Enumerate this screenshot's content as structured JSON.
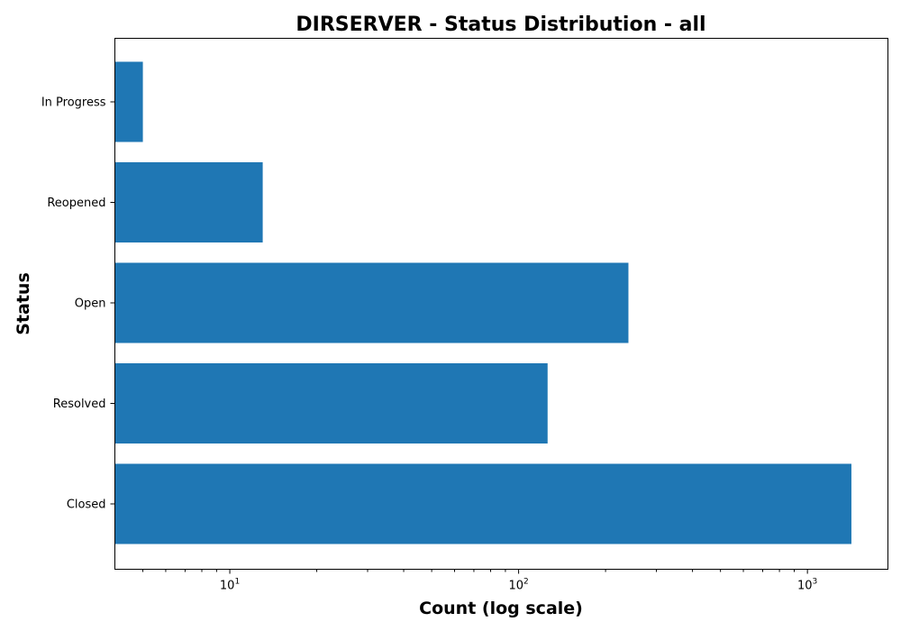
{
  "chart_data": {
    "type": "bar",
    "orientation": "horizontal",
    "title": "DIRSERVER - Status Distribution - all",
    "xlabel": "Count (log scale)",
    "ylabel": "Status",
    "x_scale": "log",
    "xlim": [
      4,
      1900
    ],
    "categories": [
      "Closed",
      "Resolved",
      "Open",
      "Reopened",
      "In Progress"
    ],
    "values": [
      1420,
      126,
      240,
      13,
      5
    ],
    "x_ticks": [
      {
        "value": 10,
        "base": "10",
        "exp": "1"
      },
      {
        "value": 100,
        "base": "10",
        "exp": "2"
      },
      {
        "value": 1000,
        "base": "10",
        "exp": "3"
      }
    ],
    "bar_color": "#1f77b4",
    "grid": false,
    "legend": "none"
  }
}
